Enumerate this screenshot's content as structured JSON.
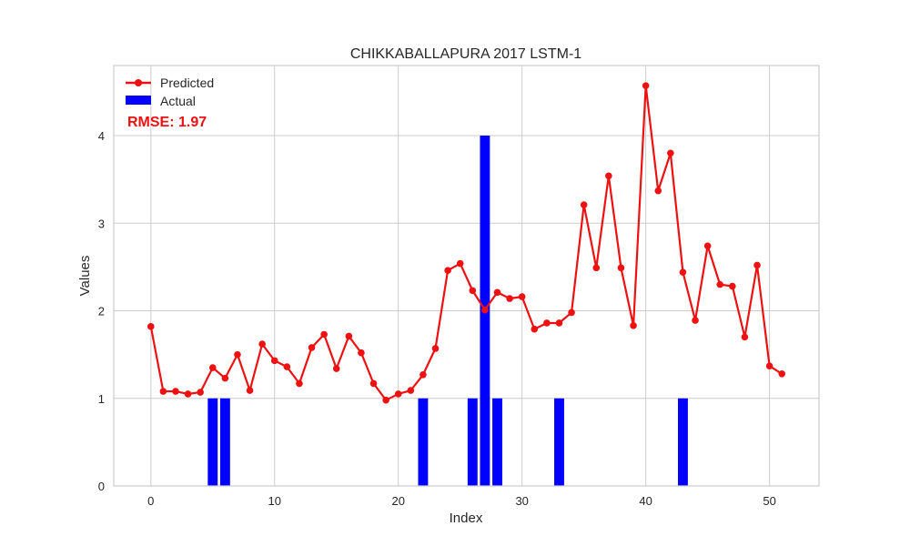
{
  "chart_data": {
    "type": "line",
    "title": "CHIKKABALLAPURA 2017 LSTM-1",
    "xlabel": "Index",
    "ylabel": "Values",
    "xlim": [
      -3,
      54
    ],
    "ylim": [
      0,
      4.8
    ],
    "x_ticks": [
      0,
      10,
      20,
      30,
      40,
      50
    ],
    "y_ticks": [
      0,
      1,
      2,
      3,
      4
    ],
    "grid": true,
    "legend_position": "top-left",
    "annotation": "RMSE: 1.97",
    "series": [
      {
        "name": "Predicted",
        "type": "line",
        "color": "#ee1111",
        "x": [
          0,
          1,
          2,
          3,
          4,
          5,
          6,
          7,
          8,
          9,
          10,
          11,
          12,
          13,
          14,
          15,
          16,
          17,
          18,
          19,
          20,
          21,
          22,
          23,
          24,
          25,
          26,
          27,
          28,
          29,
          30,
          31,
          32,
          33,
          34,
          35,
          36,
          37,
          38,
          39,
          40,
          41,
          42,
          43,
          44,
          45,
          46,
          47,
          48,
          49,
          50,
          51
        ],
        "values": [
          1.82,
          1.08,
          1.08,
          1.05,
          1.07,
          1.35,
          1.23,
          1.5,
          1.09,
          1.62,
          1.43,
          1.36,
          1.17,
          1.58,
          1.73,
          1.34,
          1.71,
          1.52,
          1.17,
          0.98,
          1.05,
          1.09,
          1.27,
          1.57,
          2.46,
          2.54,
          2.23,
          2.01,
          2.21,
          2.14,
          2.16,
          1.79,
          1.86,
          1.86,
          1.98,
          3.21,
          2.49,
          3.54,
          2.49,
          1.83,
          4.57,
          3.37,
          3.8,
          2.44,
          1.89,
          2.74,
          2.3,
          2.28,
          1.7,
          2.52,
          1.37,
          1.28
        ]
      },
      {
        "name": "Actual",
        "type": "bar",
        "color": "#0000ff",
        "x": [
          0,
          1,
          2,
          3,
          4,
          5,
          6,
          7,
          8,
          9,
          10,
          11,
          12,
          13,
          14,
          15,
          16,
          17,
          18,
          19,
          20,
          21,
          22,
          23,
          24,
          25,
          26,
          27,
          28,
          29,
          30,
          31,
          32,
          33,
          34,
          35,
          36,
          37,
          38,
          39,
          40,
          41,
          42,
          43,
          44,
          45,
          46,
          47,
          48,
          49,
          50,
          51
        ],
        "values": [
          0,
          0,
          0,
          0,
          0,
          1,
          1,
          0,
          0,
          0,
          0,
          0,
          0,
          0,
          0,
          0,
          0,
          0,
          0,
          0,
          0,
          0,
          1,
          0,
          0,
          0,
          1,
          4,
          1,
          0,
          0,
          0,
          0,
          1,
          0,
          0,
          0,
          0,
          0,
          0,
          0,
          0,
          0,
          1,
          0,
          0,
          0,
          0,
          0,
          0,
          0,
          0
        ]
      }
    ]
  }
}
